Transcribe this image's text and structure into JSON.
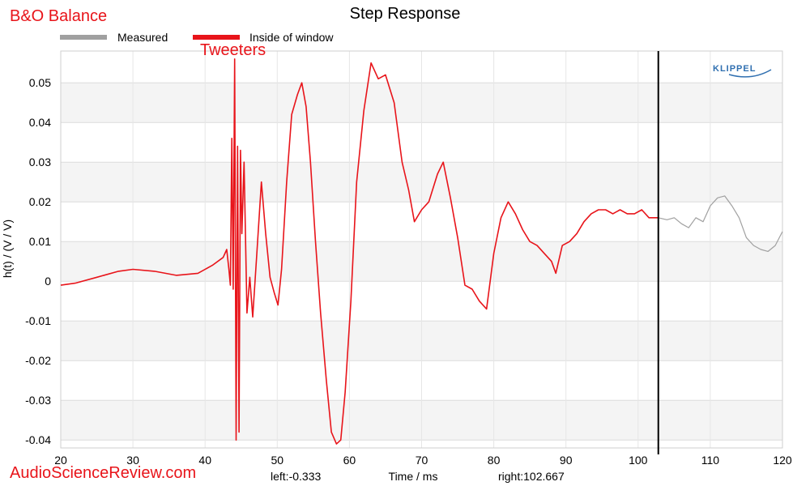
{
  "header": {
    "brand_title": "B&O Balance",
    "brand_color": "#e8141a",
    "annotation": "Tweeters",
    "logo_text": "KLIPPEL",
    "watermark": "AudioScienceReview.com"
  },
  "footer": {
    "left_label": "left:-0.333",
    "right_label": "right:102.667"
  },
  "chart_data": {
    "type": "line",
    "title": "Step Response",
    "xlabel": "Time / ms",
    "ylabel": "h(t) / (V / V)",
    "xlim": [
      20,
      120
    ],
    "ylim": [
      -0.042,
      0.058
    ],
    "x_ticks": [
      20,
      30,
      40,
      50,
      60,
      70,
      80,
      90,
      100,
      110,
      120
    ],
    "y_ticks": [
      0.05,
      0.04,
      0.03,
      0.02,
      0.01,
      0,
      -0.01,
      -0.02,
      -0.03,
      -0.04
    ],
    "y_tick_labels": [
      "0.05",
      "0.04",
      "0.03",
      "0.02",
      "0.01",
      "0",
      "-0.01",
      "-0.02",
      "-0.03",
      "-0.04"
    ],
    "legend_position": "top-left",
    "window_marker_x": 102.8,
    "series": [
      {
        "name": "Measured",
        "color": "#a0a0a0",
        "x": [
          102.8,
          104,
          105,
          106,
          107,
          108,
          109,
          110,
          111,
          112,
          113,
          114,
          115,
          116,
          117,
          118,
          119,
          120
        ],
        "y": [
          0.016,
          0.0155,
          0.016,
          0.0145,
          0.0135,
          0.016,
          0.015,
          0.019,
          0.021,
          0.0215,
          0.019,
          0.016,
          0.011,
          0.009,
          0.008,
          0.0075,
          0.009,
          0.0125
        ]
      },
      {
        "name": "Inside of window",
        "color": "#e8141a",
        "x": [
          20,
          22,
          25,
          28,
          30,
          33,
          36,
          39,
          41,
          42.5,
          43.0,
          43.3,
          43.5,
          43.7,
          43.9,
          44.1,
          44.3,
          44.5,
          44.7,
          44.9,
          45.1,
          45.4,
          45.8,
          46.2,
          46.6,
          47.2,
          47.8,
          48.4,
          49.0,
          49.6,
          50.1,
          50.6,
          51.3,
          52.0,
          52.8,
          53.4,
          54.0,
          54.6,
          55.3,
          56.0,
          56.8,
          57.5,
          58.2,
          58.8,
          59.4,
          60.2,
          61.0,
          62.0,
          63.0,
          64.0,
          65.0,
          66.2,
          67.3,
          68.2,
          69.0,
          70.0,
          71.0,
          72.2,
          73.0,
          74.0,
          75.0,
          76.0,
          77.0,
          78.0,
          79.0,
          80.0,
          81.0,
          82.0,
          83.0,
          84.0,
          85.0,
          86.0,
          87.0,
          88.0,
          88.6,
          89.5,
          90.5,
          91.5,
          92.5,
          93.5,
          94.5,
          95.5,
          96.5,
          97.5,
          98.5,
          99.5,
          100.5,
          101.5,
          102.8
        ],
        "y": [
          -0.001,
          -0.0005,
          0.001,
          0.0025,
          0.003,
          0.0025,
          0.0015,
          0.002,
          0.004,
          0.006,
          0.008,
          0.003,
          -0.001,
          0.036,
          -0.002,
          0.056,
          -0.04,
          0.034,
          -0.038,
          0.033,
          0.012,
          0.03,
          -0.008,
          0.001,
          -0.009,
          0.008,
          0.025,
          0.012,
          0.001,
          -0.003,
          -0.006,
          0.003,
          0.025,
          0.042,
          0.047,
          0.05,
          0.044,
          0.03,
          0.01,
          -0.008,
          -0.025,
          -0.038,
          -0.041,
          -0.04,
          -0.028,
          -0.005,
          0.025,
          0.043,
          0.055,
          0.051,
          0.052,
          0.045,
          0.03,
          0.023,
          0.015,
          0.018,
          0.02,
          0.027,
          0.03,
          0.021,
          0.011,
          -0.001,
          -0.002,
          -0.005,
          -0.007,
          0.007,
          0.016,
          0.02,
          0.017,
          0.013,
          0.01,
          0.009,
          0.007,
          0.005,
          0.002,
          0.009,
          0.01,
          0.012,
          0.015,
          0.017,
          0.018,
          0.018,
          0.017,
          0.018,
          0.017,
          0.017,
          0.018,
          0.016,
          0.016
        ]
      }
    ]
  }
}
